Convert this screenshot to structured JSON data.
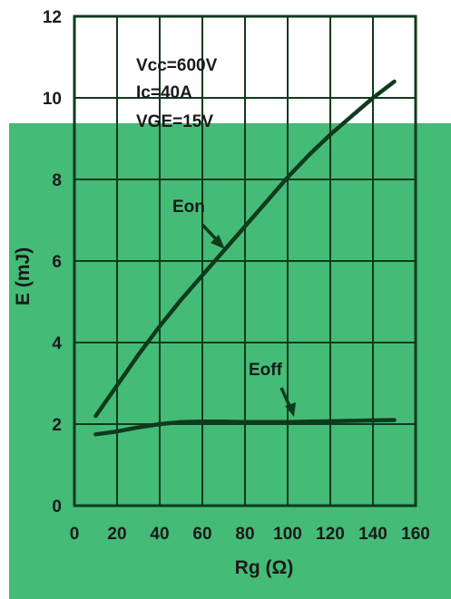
{
  "chart_data": {
    "type": "line",
    "xlabel": "Rg (Ω)",
    "ylabel": "E (mJ)",
    "xlim": [
      0,
      160
    ],
    "ylim": [
      0,
      12
    ],
    "xticks": [
      "0",
      "20",
      "40",
      "60",
      "80",
      "100",
      "120",
      "140",
      "160"
    ],
    "yticks": [
      "0",
      "2",
      "4",
      "6",
      "8",
      "10",
      "12"
    ],
    "grid": true,
    "background_color": "#45bb78",
    "plot_box_color": "#ffffff",
    "line_color": "#0f3a1c",
    "conditions": [
      "Vcc=600V",
      "Ic=40A",
      "VGE=15V"
    ],
    "series": [
      {
        "name": "Eon",
        "x": [
          10,
          20,
          30,
          40,
          50,
          60,
          70,
          80,
          90,
          100,
          110,
          120,
          130,
          140,
          150
        ],
        "y": [
          2.2,
          2.95,
          3.7,
          4.4,
          5.05,
          5.65,
          6.25,
          6.85,
          7.45,
          8.05,
          8.6,
          9.1,
          9.55,
          10.0,
          10.4
        ]
      },
      {
        "name": "Eoff",
        "x": [
          10,
          20,
          30,
          40,
          50,
          60,
          70,
          80,
          90,
          100,
          110,
          120,
          130,
          140,
          150
        ],
        "y": [
          1.75,
          1.82,
          1.92,
          2.0,
          2.05,
          2.06,
          2.06,
          2.05,
          2.05,
          2.05,
          2.06,
          2.07,
          2.08,
          2.09,
          2.1
        ]
      }
    ]
  }
}
